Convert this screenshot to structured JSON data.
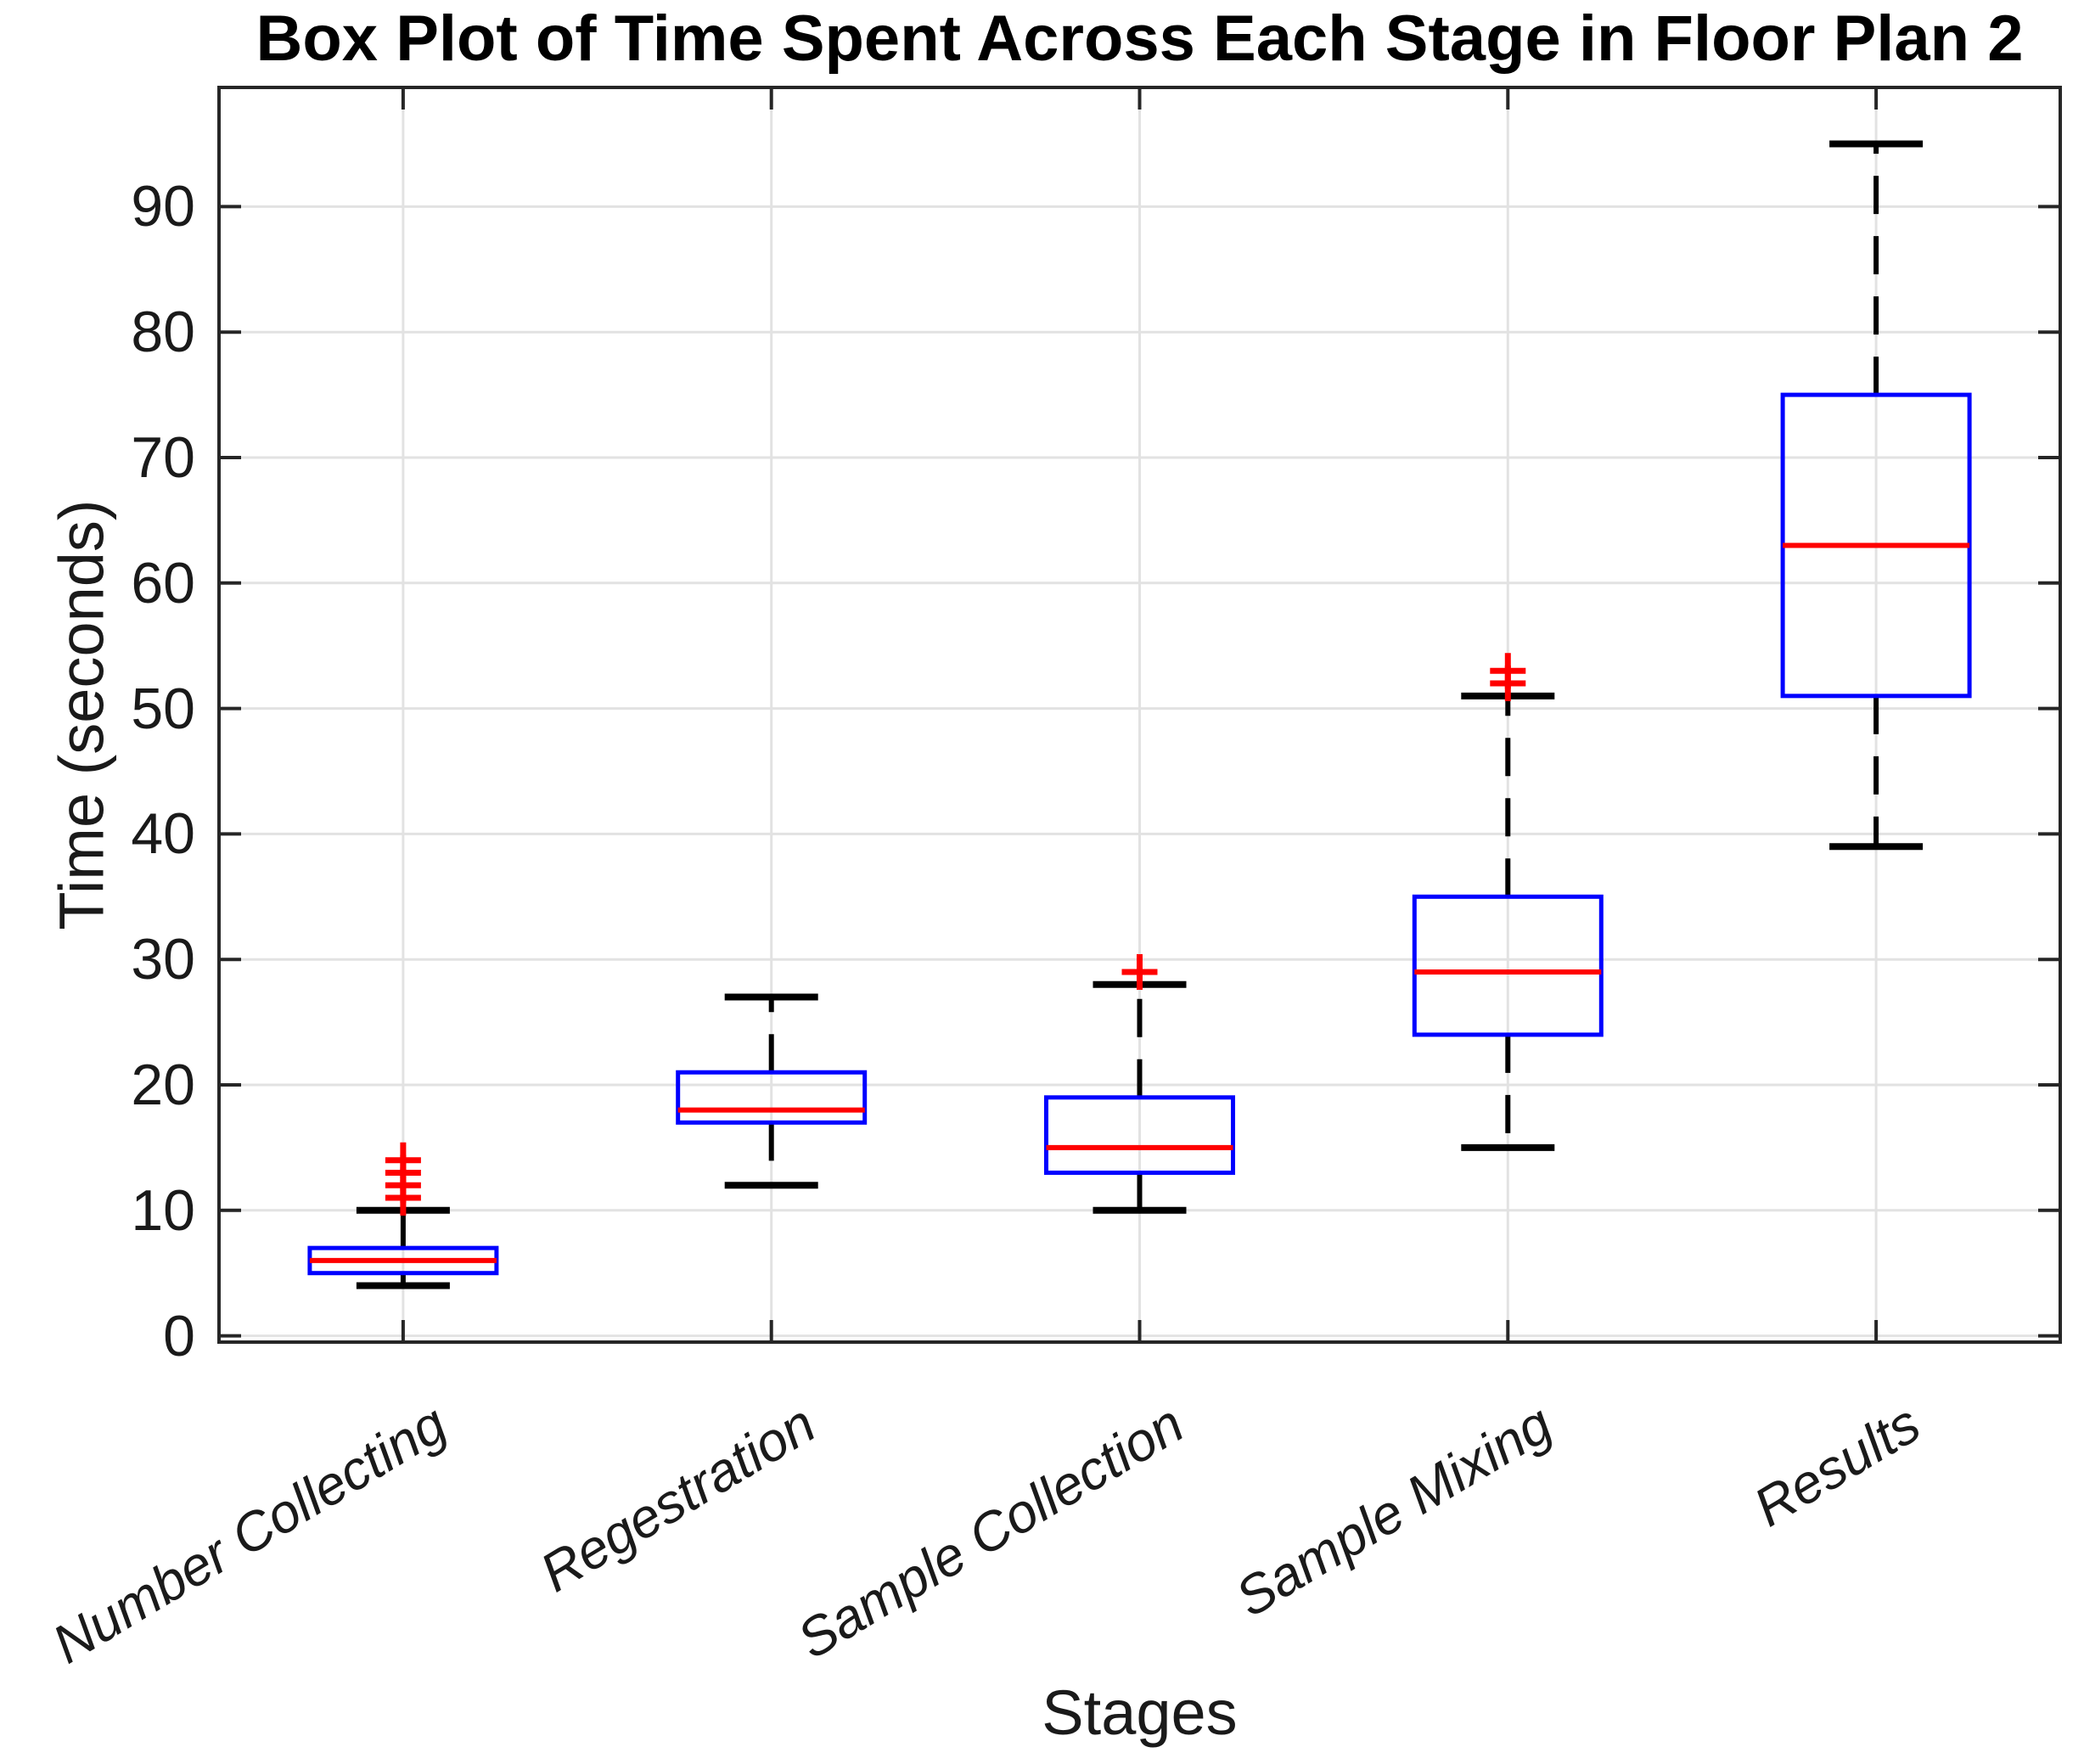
{
  "chart_data": {
    "type": "box",
    "title": "Box Plot of Time Spent Across Each Stage in Floor Plan 2",
    "xlabel": "Stages",
    "ylabel": "Time (seconds)",
    "ylim": [
      -0.5,
      99.5
    ],
    "yticks": [
      0,
      10,
      20,
      30,
      40,
      50,
      60,
      70,
      80,
      90
    ],
    "grid": true,
    "legend": "none",
    "categories": [
      "Number Collecting",
      "Regestration",
      "Sample Collection",
      "Sample Mixing",
      "Results"
    ],
    "series": [
      {
        "name": "Number Collecting",
        "whisker_low": 4,
        "q1": 5,
        "median": 6,
        "q3": 7,
        "whisker_high": 10,
        "outliers": [
          11,
          12,
          13,
          14
        ]
      },
      {
        "name": "Regestration",
        "whisker_low": 12,
        "q1": 17,
        "median": 18,
        "q3": 21,
        "whisker_high": 27,
        "outliers": []
      },
      {
        "name": "Sample Collection",
        "whisker_low": 10,
        "q1": 13,
        "median": 15,
        "q3": 19,
        "whisker_high": 28,
        "outliers": [
          29
        ]
      },
      {
        "name": "Sample Mixing",
        "whisker_low": 15,
        "q1": 24,
        "median": 29,
        "q3": 35,
        "whisker_high": 51,
        "outliers": [
          52,
          53
        ]
      },
      {
        "name": "Results",
        "whisker_low": 39,
        "q1": 51,
        "median": 63,
        "q3": 75,
        "whisker_high": 95,
        "outliers": []
      }
    ],
    "colors": {
      "box": "#0000ff",
      "median": "#ff0000",
      "whisker": "#000000",
      "cap": "#000000",
      "outlier": "#ff0000",
      "grid": "#e2e2e2",
      "axis": "#262626",
      "title": "#000000",
      "background": "#ffffff"
    }
  }
}
